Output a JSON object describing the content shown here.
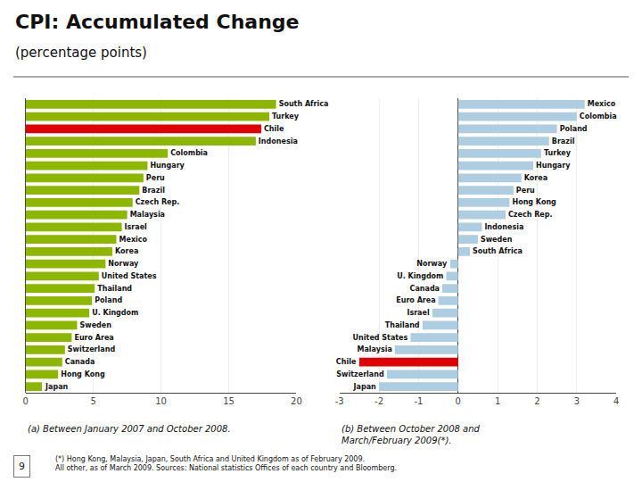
{
  "title": "CPI: Accumulated Change",
  "subtitle": "(percentage points)",
  "annotations": [
    "(*) Hong Kong, Malaysia, Japan, South Africa and United Kingdom as of February 2009.\nAll other, as of March 2009. Sources: National statistics Offices of each country and Bloomberg.",
    "9"
  ],
  "chart_data": [
    {
      "type": "bar",
      "orientation": "horizontal",
      "title": "(a) Between January 2007 and October 2008.",
      "categories": [
        "South Africa",
        "Turkey",
        "Chile",
        "Indonesia",
        "Colombia",
        "Hungary",
        "Peru",
        "Brazil",
        "Czech Rep.",
        "Malaysia",
        "Israel",
        "Mexico",
        "Korea",
        "Norway",
        "United States",
        "Thailand",
        "Poland",
        "U. Kingdom",
        "Sweden",
        "Euro Area",
        "Switzerland",
        "Canada",
        "Hong Kong",
        "Japan"
      ],
      "values": [
        18.5,
        18.0,
        17.4,
        17.0,
        10.5,
        9.0,
        8.7,
        8.4,
        7.9,
        7.5,
        7.1,
        6.7,
        6.4,
        5.9,
        5.4,
        5.1,
        4.9,
        4.7,
        3.8,
        3.4,
        2.9,
        2.7,
        2.4,
        1.2
      ],
      "colors": [
        "#8db600",
        "#8db600",
        "#e00000",
        "#8db600",
        "#8db600",
        "#8db600",
        "#8db600",
        "#8db600",
        "#8db600",
        "#8db600",
        "#8db600",
        "#8db600",
        "#8db600",
        "#8db600",
        "#8db600",
        "#8db600",
        "#8db600",
        "#8db600",
        "#8db600",
        "#8db600",
        "#8db600",
        "#8db600",
        "#8db600",
        "#8db600"
      ],
      "xlim": [
        0,
        20
      ],
      "xticks": [
        0,
        5,
        10,
        15,
        20
      ],
      "grid": true,
      "tick_labels": "x"
    },
    {
      "type": "bar",
      "orientation": "horizontal",
      "title": "(b) Between October 2008 and\nMarch/February 2009(*).",
      "categories": [
        "Mexico",
        "Colombia",
        "Poland",
        "Brazil",
        "Turkey",
        "Hungary",
        "Korea",
        "Peru",
        "Hong Kong",
        "Czech Rep.",
        "Indonesia",
        "Sweden",
        "South Africa",
        "Norway",
        "U. Kingdom",
        "Canada",
        "Euro Area",
        "Israel",
        "Thailand",
        "United States",
        "Malaysia",
        "Chile",
        "Switzerland",
        "Japan"
      ],
      "values": [
        3.2,
        3.0,
        2.5,
        2.3,
        2.1,
        1.9,
        1.6,
        1.4,
        1.3,
        1.2,
        0.6,
        0.5,
        0.3,
        -0.2,
        -0.3,
        -0.4,
        -0.5,
        -0.65,
        -0.9,
        -1.2,
        -1.6,
        -2.5,
        -1.8,
        -2.0
      ],
      "colors": [
        "#aecde0",
        "#aecde0",
        "#aecde0",
        "#aecde0",
        "#aecde0",
        "#aecde0",
        "#aecde0",
        "#aecde0",
        "#aecde0",
        "#aecde0",
        "#aecde0",
        "#aecde0",
        "#aecde0",
        "#aecde0",
        "#aecde0",
        "#aecde0",
        "#aecde0",
        "#aecde0",
        "#aecde0",
        "#aecde0",
        "#aecde0",
        "#e00000",
        "#aecde0",
        "#aecde0"
      ],
      "xlim": [
        -3,
        4
      ],
      "xticks": [
        -3,
        -2,
        -1,
        0,
        1,
        2,
        3,
        4
      ],
      "grid": true,
      "tick_labels": "x"
    }
  ]
}
